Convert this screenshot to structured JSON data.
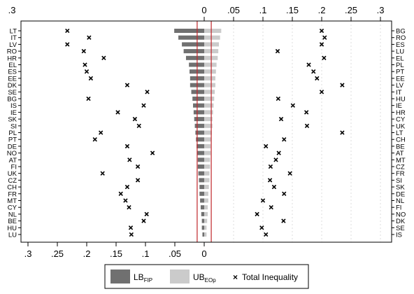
{
  "chart_data": {
    "type": "bar",
    "top_axis_ticks": [
      "0",
      ".05",
      ".1",
      ".15",
      ".2",
      ".25",
      ".3"
    ],
    "bottom_axis_ticks": [
      ".3",
      ".25",
      ".2",
      ".15",
      ".1",
      ".05",
      "0"
    ],
    "left_ticks_top": ".3",
    "left_countries": [
      "LT",
      "IT",
      "LV",
      "RO",
      "HR",
      "EL",
      "ES",
      "EE",
      "DK",
      "SE",
      "BG",
      "IS",
      "IE",
      "SK",
      "SI",
      "PL",
      "PT",
      "DE",
      "NO",
      "AT",
      "FI",
      "UK",
      "CZ",
      "CH",
      "FR",
      "MT",
      "CY",
      "NL",
      "BE",
      "HU",
      "LU"
    ],
    "right_countries": [
      "BG",
      "RO",
      "ES",
      "LU",
      "EL",
      "PL",
      "PT",
      "EE",
      "LV",
      "IT",
      "HU",
      "IE",
      "HR",
      "CY",
      "UK",
      "LT",
      "CH",
      "BE",
      "AT",
      "MT",
      "CZ",
      "FR",
      "SI",
      "SK",
      "DE",
      "NL",
      "FI",
      "NO",
      "DK",
      "SE",
      "IS"
    ],
    "lb_values": [
      0.051,
      0.044,
      0.038,
      0.035,
      0.031,
      0.026,
      0.025,
      0.024,
      0.024,
      0.022,
      0.02,
      0.019,
      0.018,
      0.017,
      0.016,
      0.015,
      0.014,
      0.013,
      0.012,
      0.011,
      0.011,
      0.01,
      0.009,
      0.008,
      0.008,
      0.007,
      0.006,
      0.005,
      0.004,
      0.004,
      0.003
    ],
    "ub_values": [
      0.029,
      0.027,
      0.025,
      0.024,
      0.023,
      0.021,
      0.02,
      0.019,
      0.019,
      0.018,
      0.017,
      0.016,
      0.015,
      0.014,
      0.014,
      0.013,
      0.012,
      0.011,
      0.011,
      0.01,
      0.01,
      0.009,
      0.009,
      0.008,
      0.007,
      0.007,
      0.006,
      0.006,
      0.005,
      0.004,
      0.004
    ],
    "left_inequality": [
      0.233,
      0.196,
      0.233,
      0.205,
      0.171,
      0.203,
      0.2,
      0.193,
      0.131,
      0.097,
      0.197,
      0.103,
      0.147,
      0.118,
      0.111,
      0.176,
      0.186,
      0.131,
      0.088,
      0.127,
      0.113,
      0.173,
      0.113,
      0.131,
      0.142,
      0.134,
      0.128,
      0.098,
      0.103,
      0.125,
      0.124
    ],
    "right_inequality": [
      0.2,
      0.205,
      0.2,
      0.125,
      0.204,
      0.178,
      0.186,
      0.192,
      0.235,
      0.2,
      0.126,
      0.151,
      0.174,
      0.131,
      0.175,
      0.235,
      0.136,
      0.105,
      0.127,
      0.122,
      0.113,
      0.146,
      0.112,
      0.119,
      0.136,
      0.1,
      0.114,
      0.09,
      0.135,
      0.098,
      0.105
    ],
    "vline": 0.012,
    "legend": {
      "lb_label": "LB",
      "lb_sub": "FIP",
      "ub_label": "UB",
      "ub_sub": "EOp",
      "total_label": "Total Inequality"
    },
    "colors": {
      "lb": "#707070",
      "ub": "#cbcbcb",
      "vline": "#c0262b",
      "grid": "#dcdcdc",
      "marker": "#000000"
    }
  }
}
